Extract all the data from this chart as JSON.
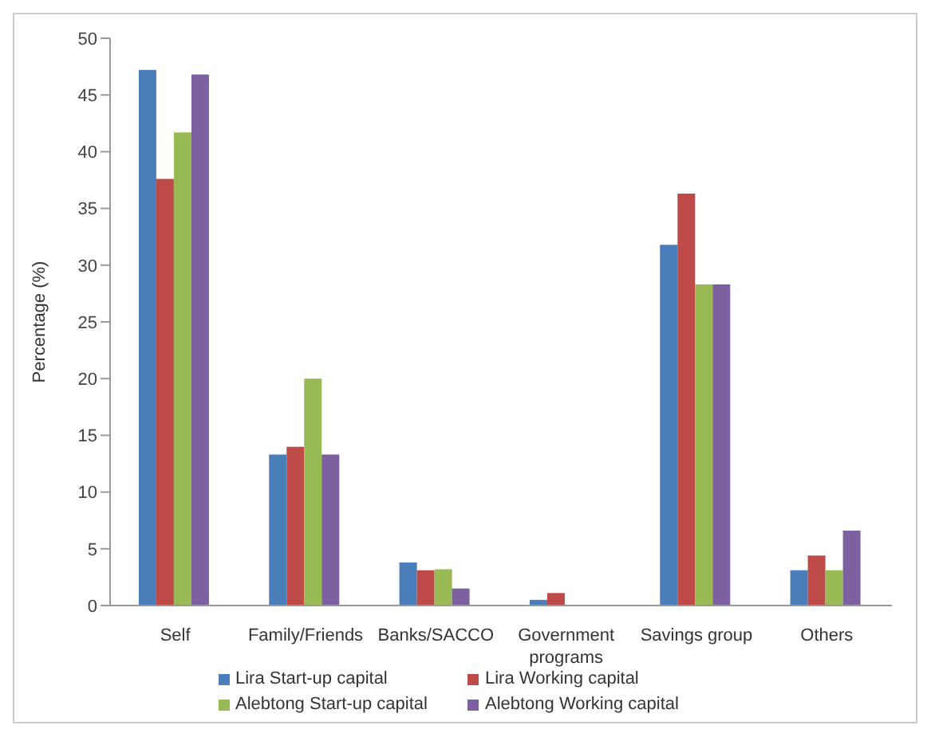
{
  "chart_data": {
    "type": "bar",
    "ylabel": "Percentage (%)",
    "categories": [
      "Self",
      "Family/Friends",
      "Banks/SACCO",
      "Government programs",
      "Savings group",
      "Others"
    ],
    "series": [
      {
        "name": "Lira Start-up capital",
        "color": "#4a7ebb",
        "values": [
          47.2,
          13.3,
          3.8,
          0.5,
          31.8,
          3.1
        ]
      },
      {
        "name": "Lira Working capital",
        "color": "#be4b48",
        "values": [
          37.6,
          14,
          3.1,
          1.1,
          36.3,
          4.4
        ]
      },
      {
        "name": "Alebtong Start-up capital",
        "color": "#98b954",
        "values": [
          41.7,
          20,
          3.2,
          0,
          28.3,
          3.1
        ]
      },
      {
        "name": "Alebtong Working capital",
        "color": "#7d60a0",
        "values": [
          46.8,
          13.3,
          1.5,
          0,
          28.3,
          6.6
        ]
      }
    ],
    "ylim": [
      0,
      50
    ],
    "yticks": [
      0,
      5,
      10,
      15,
      20,
      25,
      30,
      35,
      40,
      45,
      50
    ],
    "grid": false,
    "legend": "bottom"
  }
}
